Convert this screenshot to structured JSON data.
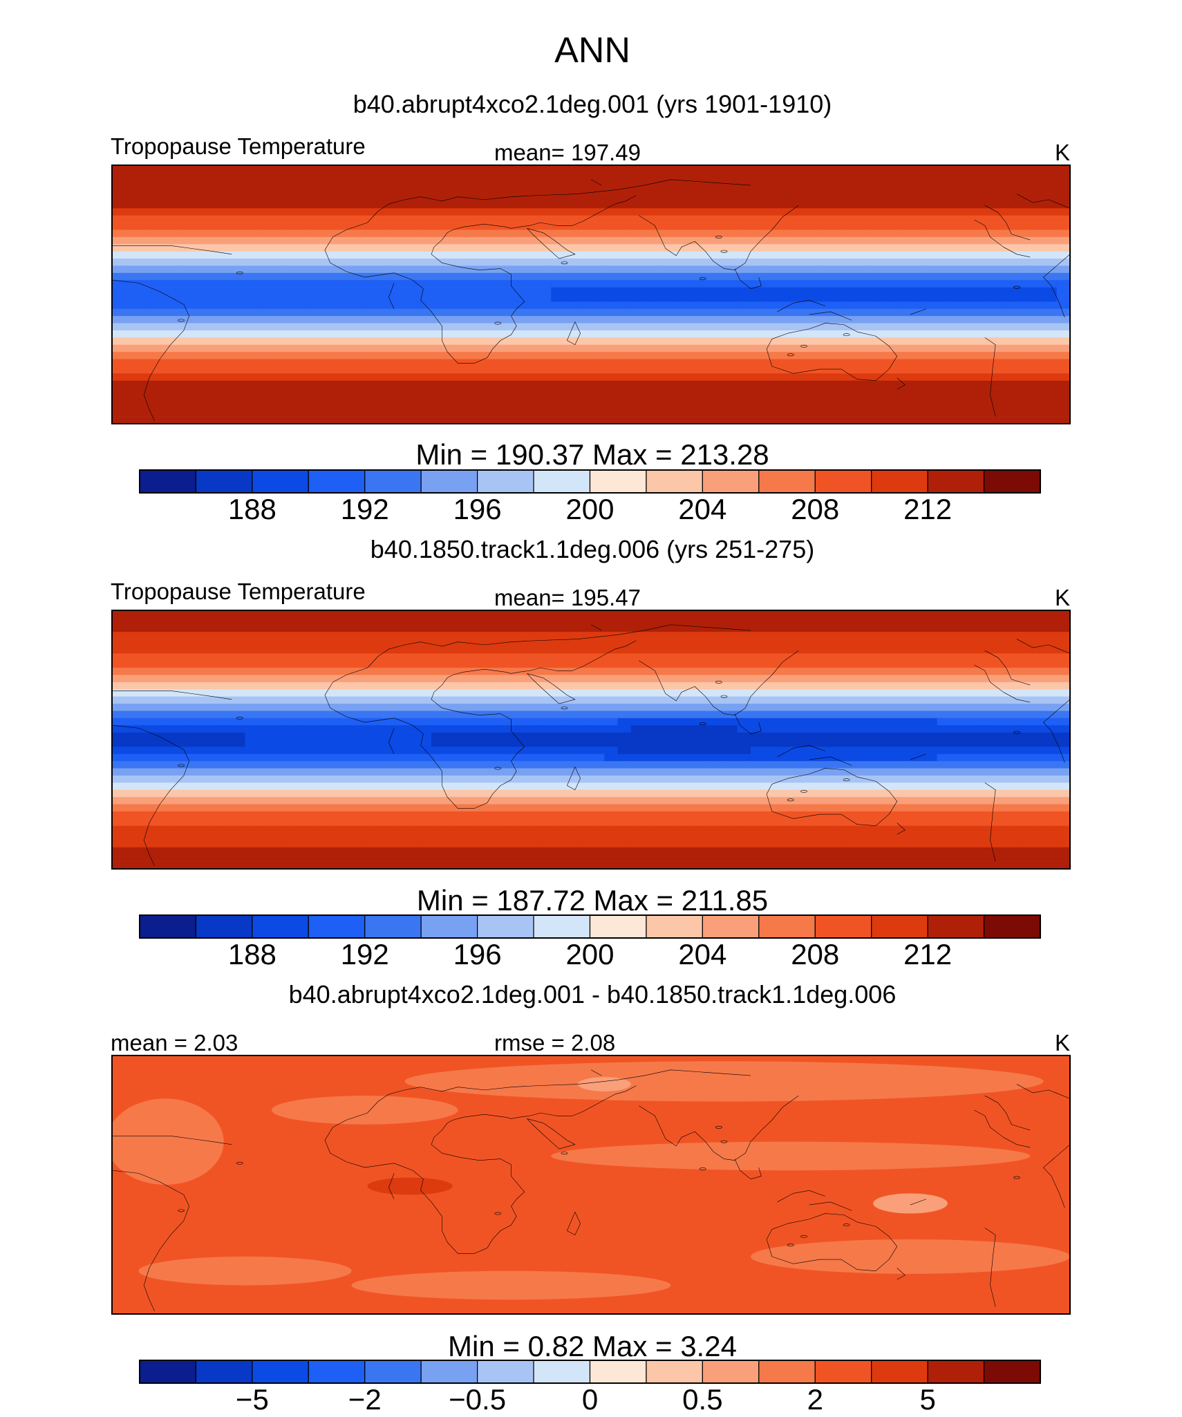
{
  "figure_title": "ANN",
  "chart_data": [
    {
      "type": "heatmap",
      "case_title": "b40.abrupt4xco2.1deg.001 (yrs 1901-1910)",
      "left_label": "Tropopause Temperature",
      "center_label": "mean=  197.49",
      "units": "K",
      "minmax_label": "Min  =  190.37  Max  =  213.28",
      "mean": 197.49,
      "min": 190.37,
      "max": 213.28,
      "colorbar_ticks": [
        "188",
        "192",
        "196",
        "200",
        "204",
        "208",
        "212"
      ],
      "field": {
        "eq_value": 191.0,
        "pole_value": 212.0,
        "bandwidth_deg": 42
      }
    },
    {
      "type": "heatmap",
      "case_title": "b40.1850.track1.1deg.006 (yrs 251-275)",
      "left_label": "Tropopause Temperature",
      "center_label": "mean=  195.47",
      "units": "K",
      "minmax_label": "Min  =  187.72  Max  =  211.85",
      "mean": 195.47,
      "min": 187.72,
      "max": 211.85,
      "colorbar_ticks": [
        "188",
        "192",
        "196",
        "200",
        "204",
        "208",
        "212"
      ],
      "field": {
        "eq_value": 188.5,
        "pole_value": 210.5,
        "bandwidth_deg": 42
      }
    },
    {
      "type": "heatmap",
      "case_title": "b40.abrupt4xco2.1deg.001 - b40.1850.track1.1deg.006",
      "left_label": "mean =    2.03",
      "center_label": "rmse =    2.08",
      "units": "K",
      "minmax_label": "Min  =     0.82  Max  =     3.24",
      "mean": 2.03,
      "rmse": 2.08,
      "min": 0.82,
      "max": 3.24,
      "colorbar_ticks": [
        "−5",
        "−2",
        "−0.5",
        "0",
        "0.5",
        "2",
        "5"
      ]
    }
  ],
  "colors": {
    "palette": [
      "#0b1e8f",
      "#0838c6",
      "#0c4ae5",
      "#1e5ff5",
      "#3a76f2",
      "#78a1f2",
      "#a8c4f5",
      "#d3e5f8",
      "#fde7d6",
      "#fcc6a8",
      "#f9a07a",
      "#f6794a",
      "#f15424",
      "#dd3a10",
      "#b02008",
      "#7c0a05"
    ]
  }
}
